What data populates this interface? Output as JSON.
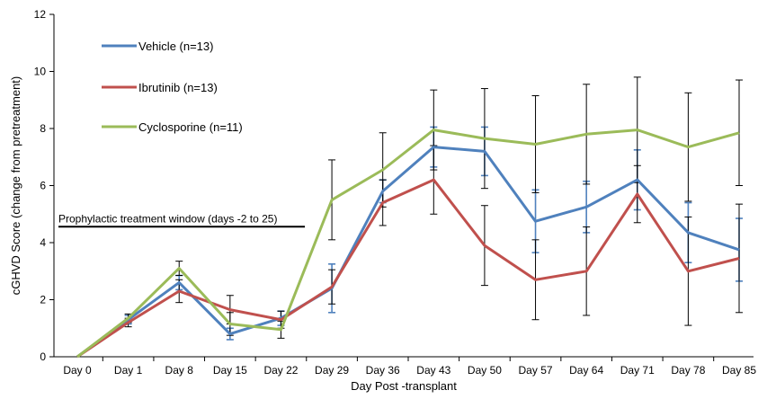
{
  "chart_data": {
    "type": "line",
    "title": "",
    "xlabel": "Day Post -transplant",
    "ylabel": "cGHVD Score (change from pretreatment)",
    "ylim": [
      0,
      12
    ],
    "yticks": [
      0,
      2,
      4,
      6,
      8,
      10,
      12
    ],
    "grid": false,
    "legend_position": "top-left",
    "categories": [
      "Day 0",
      "Day 1",
      "Day 8",
      "Day 15",
      "Day 22",
      "Day 29",
      "Day 36",
      "Day 43",
      "Day 50",
      "Day 57",
      "Day 64",
      "Day 71",
      "Day 78",
      "Day 85"
    ],
    "series": [
      {
        "name": "Vehicle (n=13)",
        "color": "#4F81BD",
        "values": [
          0,
          1.3,
          2.6,
          0.8,
          1.35,
          2.4,
          5.8,
          7.35,
          7.2,
          4.75,
          5.25,
          6.2,
          4.35,
          3.75
        ],
        "errors": [
          0,
          0.15,
          0.25,
          0.2,
          0.25,
          0.85,
          0.4,
          0.7,
          0.85,
          1.1,
          0.9,
          1.05,
          1.05,
          1.1
        ]
      },
      {
        "name": "Ibrutinib (n=13)",
        "color": "#C0504D",
        "values": [
          0,
          1.2,
          2.3,
          1.65,
          1.3,
          2.45,
          5.4,
          6.2,
          3.9,
          2.7,
          3.0,
          5.7,
          3.0,
          3.45
        ],
        "errors": [
          0,
          0.15,
          0.4,
          0.5,
          0.3,
          0.6,
          0.8,
          1.2,
          1.4,
          1.4,
          1.55,
          1.0,
          1.9,
          1.9
        ]
      },
      {
        "name": "Cyclosporine (n=11)",
        "color": "#9BBB59",
        "values": [
          0,
          1.35,
          3.1,
          1.15,
          0.95,
          5.5,
          6.55,
          7.95,
          7.65,
          7.45,
          7.8,
          7.95,
          7.35,
          7.85
        ],
        "errors": [
          0,
          0.15,
          0.25,
          0.4,
          0.3,
          1.4,
          1.3,
          1.4,
          1.75,
          1.7,
          1.75,
          1.85,
          1.9,
          1.85
        ]
      }
    ],
    "annotation": {
      "text": "Prophylactic treatment window (days -2 to 25)",
      "line_y": 5,
      "from": "Day 0",
      "to": "Day 22"
    }
  }
}
